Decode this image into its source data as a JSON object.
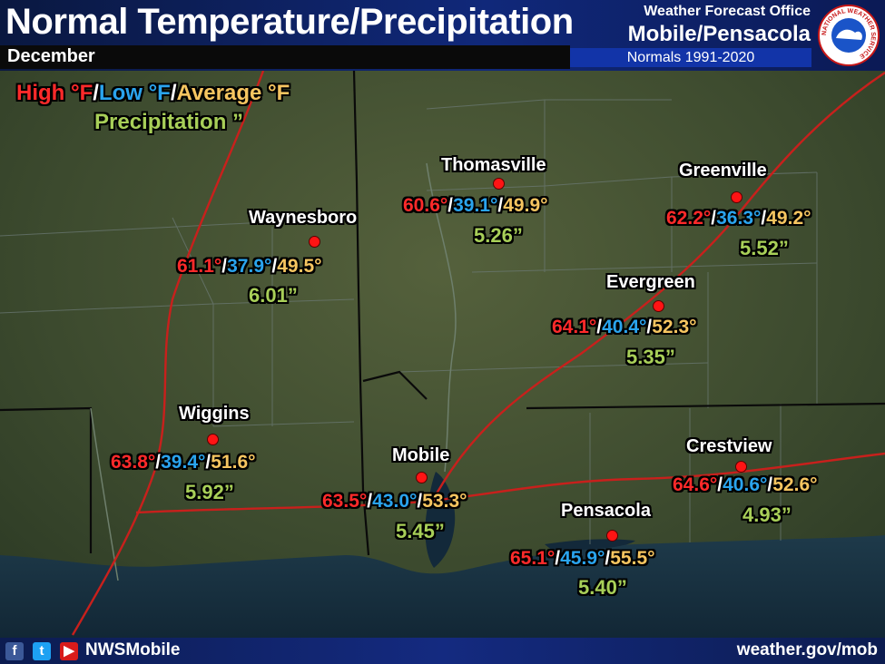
{
  "header": {
    "title": "Normal Temperature/Precipitation",
    "month": "December",
    "office_line1": "Weather Forecast Office",
    "office_line2": "Mobile/Pensacola",
    "normals_period": "Normals 1991-2020",
    "logo_text": "NATIONAL WEATHER SERVICE"
  },
  "legend": {
    "high": "High °F",
    "low": "Low °F",
    "average": "Average °F",
    "sep": "/",
    "precip": "Precipitation ”"
  },
  "colors": {
    "high": "#ff2a2a",
    "low": "#2aa4ee",
    "average": "#f6c560",
    "precip": "#a8cf58"
  },
  "stations": [
    {
      "name": "Thomasville",
      "high": "60.6°",
      "low": "39.1°",
      "avg": "49.9°",
      "precip": "5.26”"
    },
    {
      "name": "Greenville",
      "high": "62.2°",
      "low": "36.3°",
      "avg": "49.2°",
      "precip": "5.52”"
    },
    {
      "name": "Waynesboro",
      "high": "61.1°",
      "low": "37.9°",
      "avg": "49.5°",
      "precip": "6.01”"
    },
    {
      "name": "Evergreen",
      "high": "64.1°",
      "low": "40.4°",
      "avg": "52.3°",
      "precip": "5.35”"
    },
    {
      "name": "Wiggins",
      "high": "63.8°",
      "low": "39.4°",
      "avg": "51.6°",
      "precip": "5.92”"
    },
    {
      "name": "Mobile",
      "high": "63.5°",
      "low": "43.0°",
      "avg": "53.3°",
      "precip": "5.45”"
    },
    {
      "name": "Crestview",
      "high": "64.6°",
      "low": "40.6°",
      "avg": "52.6°",
      "precip": "4.93”"
    },
    {
      "name": "Pensacola",
      "high": "65.1°",
      "low": "45.9°",
      "avg": "55.5°",
      "precip": "5.40”"
    }
  ],
  "footer": {
    "social_icons": [
      "facebook-icon",
      "twitter-icon",
      "youtube-icon"
    ],
    "handle": "NWSMobile",
    "website": "weather.gov/mob"
  }
}
